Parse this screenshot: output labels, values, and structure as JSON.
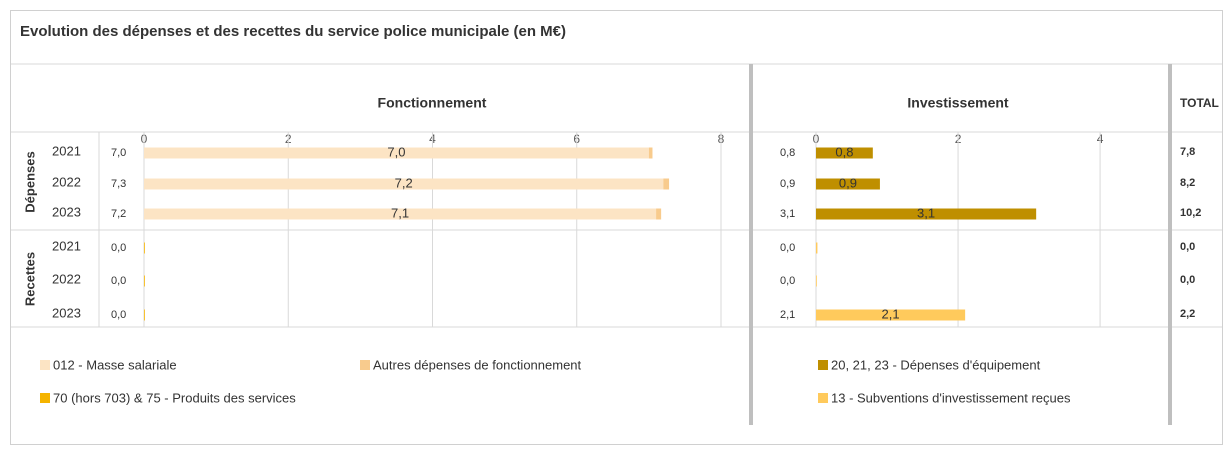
{
  "title": "Evolution des dépenses et des recettes du service police municipale (en M€)",
  "group_labels": [
    "Dépenses",
    "Recettes"
  ],
  "total": {
    "title": "TOTAL",
    "values": [
      7.8,
      8.2,
      10.2,
      0.0,
      0.0,
      2.2
    ],
    "value_labels": [
      "7,8",
      "8,2",
      "10,2",
      "0,0",
      "0,0",
      "2,2"
    ]
  },
  "chart_data": [
    {
      "type": "bar",
      "orientation": "horizontal",
      "stacked": true,
      "title": "Fonctionnement",
      "categories": [
        "2021",
        "2022",
        "2023",
        "2021",
        "2022",
        "2023"
      ],
      "xlim": [
        0,
        8
      ],
      "xticks": [
        0,
        2,
        4,
        6,
        8
      ],
      "grid": true,
      "totals": {
        "values": [
          7.0,
          7.3,
          7.2,
          0.0,
          0.0,
          0.0
        ],
        "value_labels": [
          "7,0",
          "7,3",
          "7,2",
          "0,0",
          "0,0",
          "0,0"
        ]
      },
      "series": [
        {
          "name": "012 - Masse salariale",
          "color": "#fce4c4",
          "values": [
            7.0,
            7.2,
            7.1,
            null,
            null,
            null
          ],
          "value_labels": [
            "7,0",
            "7,2",
            "7,1",
            null,
            null,
            null
          ]
        },
        {
          "name": "Autres dépenses de fonctionnement",
          "color": "#f8cb8d",
          "values": [
            0.05,
            0.08,
            0.07,
            null,
            null,
            null
          ]
        },
        {
          "name": "70 (hors 703) & 75 - Produits des services",
          "color": "#f5b400",
          "values": [
            null,
            null,
            null,
            0.01,
            0.01,
            0.01
          ]
        }
      ]
    },
    {
      "type": "bar",
      "orientation": "horizontal",
      "stacked": true,
      "title": "Investissement",
      "xlim": [
        0,
        4.9
      ],
      "xticks": [
        0,
        2,
        4
      ],
      "grid": true,
      "totals": {
        "values": [
          0.8,
          0.9,
          3.1,
          0.0,
          0.0,
          2.1
        ],
        "value_labels": [
          "0,8",
          "0,9",
          "3,1",
          "0,0",
          "0,0",
          "2,1"
        ]
      },
      "series": [
        {
          "name": "20, 21, 23 - Dépenses d'équipement",
          "color": "#bf8f00",
          "values": [
            0.8,
            0.9,
            3.1,
            null,
            null,
            null
          ],
          "value_labels": [
            "0,8",
            "0,9",
            "3,1",
            null,
            null,
            null
          ]
        },
        {
          "name": "13 - Subventions d'investissement reçues",
          "color": "#ffca5c",
          "values": [
            null,
            null,
            null,
            0.02,
            0,
            2.1
          ],
          "value_labels": [
            null,
            null,
            null,
            null,
            null,
            "2,1"
          ]
        }
      ]
    }
  ]
}
